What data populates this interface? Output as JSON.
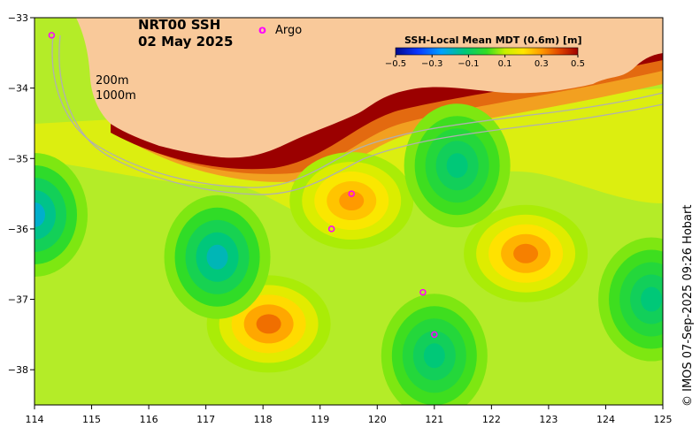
{
  "title": {
    "product": "NRT00 SSH",
    "date": "02 May 2025"
  },
  "legend": {
    "argo_symbol": "o",
    "argo_label": "Argo",
    "argo_color": "#ff00ff"
  },
  "bathymetry_labels": {
    "contour_200": "200m",
    "contour_1000": "1000m"
  },
  "colorbar": {
    "title": "SSH-Local Mean MDT (0.6m) [m]",
    "ticks": [
      "−0.5",
      "−0.3",
      "−0.1",
      "0.1",
      "0.3",
      "0.5"
    ],
    "range": [
      -0.5,
      0.5
    ]
  },
  "credit": "© IMOS 07-Sep-2025 09:26 Hobart",
  "axes": {
    "x_ticks": [
      "114",
      "115",
      "116",
      "117",
      "118",
      "119",
      "120",
      "121",
      "122",
      "123",
      "124",
      "125"
    ],
    "y_ticks": [
      "−33",
      "−34",
      "−35",
      "−36",
      "−37",
      "−38"
    ],
    "lon_range": [
      114,
      125
    ],
    "lat_range": [
      -33,
      -38.5
    ]
  },
  "colors": {
    "land": "#f9c99a",
    "shelf_high": "#9b0000",
    "contour_line": "#b0b0b0",
    "background": "#ffffff"
  },
  "features": {
    "highs": [
      {
        "name": "eddy-high-118",
        "lon": 118.1,
        "lat": -37.35,
        "value": 0.35
      },
      {
        "name": "eddy-high-122.6",
        "lon": 122.6,
        "lat": -36.35,
        "value": 0.33
      },
      {
        "name": "eddy-high-119.5",
        "lon": 119.55,
        "lat": -35.6,
        "value": 0.3
      }
    ],
    "lows": [
      {
        "name": "eddy-low-117.2",
        "lon": 117.2,
        "lat": -36.4,
        "value": -0.18
      },
      {
        "name": "eddy-low-121",
        "lon": 121.0,
        "lat": -37.8,
        "value": -0.12
      },
      {
        "name": "eddy-low-121.4",
        "lon": 121.4,
        "lat": -35.1,
        "value": -0.12
      },
      {
        "name": "eddy-low-124.8",
        "lon": 124.8,
        "lat": -37.0,
        "value": -0.12
      },
      {
        "name": "eddy-low-114",
        "lon": 114.0,
        "lat": -35.8,
        "value": -0.2
      }
    ]
  },
  "argo_floats": [
    {
      "lon": 114.3,
      "lat": -33.25
    },
    {
      "lon": 119.55,
      "lat": -35.5
    },
    {
      "lon": 119.2,
      "lat": -36.0
    },
    {
      "lon": 121.0,
      "lat": -37.5
    },
    {
      "lon": 120.8,
      "lat": -36.9
    }
  ]
}
